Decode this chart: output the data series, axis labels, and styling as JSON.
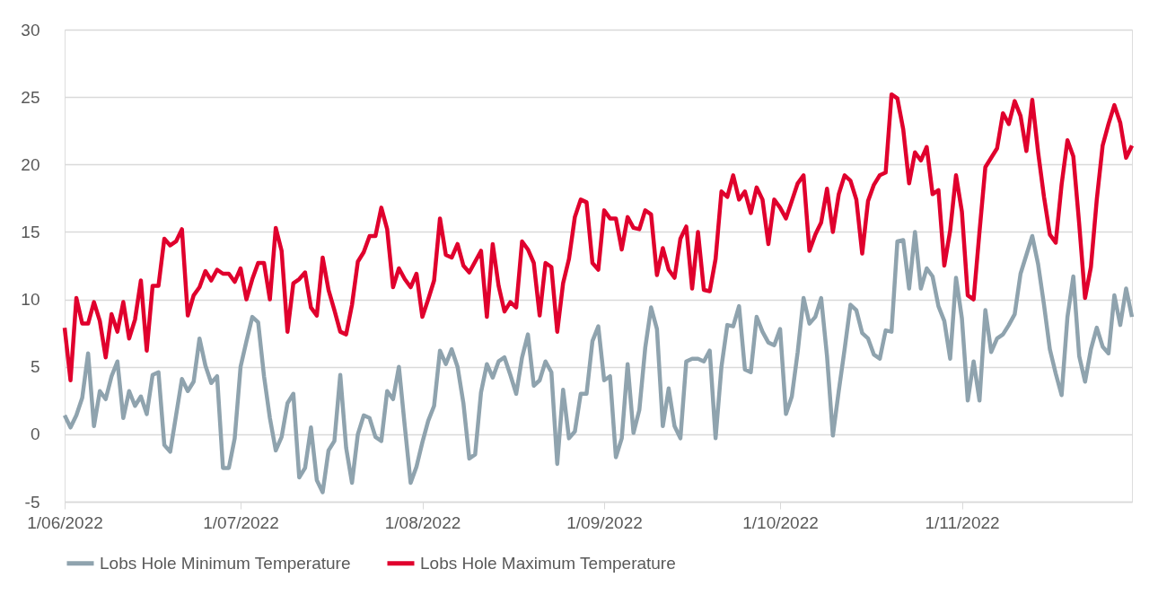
{
  "chart_data": {
    "type": "line",
    "x": [
      "2022-06-01",
      "2022-06-02",
      "2022-06-03",
      "2022-06-04",
      "2022-06-05",
      "2022-06-06",
      "2022-06-07",
      "2022-06-08",
      "2022-06-09",
      "2022-06-10",
      "2022-06-11",
      "2022-06-12",
      "2022-06-13",
      "2022-06-14",
      "2022-06-15",
      "2022-06-16",
      "2022-06-17",
      "2022-06-18",
      "2022-06-19",
      "2022-06-20",
      "2022-06-21",
      "2022-06-22",
      "2022-06-23",
      "2022-06-24",
      "2022-06-25",
      "2022-06-26",
      "2022-06-27",
      "2022-06-28",
      "2022-06-29",
      "2022-06-30",
      "2022-07-01",
      "2022-07-02",
      "2022-07-03",
      "2022-07-04",
      "2022-07-05",
      "2022-07-06",
      "2022-07-07",
      "2022-07-08",
      "2022-07-09",
      "2022-07-10",
      "2022-07-11",
      "2022-07-12",
      "2022-07-13",
      "2022-07-14",
      "2022-07-15",
      "2022-07-16",
      "2022-07-17",
      "2022-07-18",
      "2022-07-19",
      "2022-07-20",
      "2022-07-21",
      "2022-07-22",
      "2022-07-23",
      "2022-07-24",
      "2022-07-25",
      "2022-07-26",
      "2022-07-27",
      "2022-07-28",
      "2022-07-29",
      "2022-07-30",
      "2022-07-31",
      "2022-08-01",
      "2022-08-02",
      "2022-08-03",
      "2022-08-04",
      "2022-08-05",
      "2022-08-06",
      "2022-08-07",
      "2022-08-08",
      "2022-08-09",
      "2022-08-10",
      "2022-08-11",
      "2022-08-12",
      "2022-08-13",
      "2022-08-14",
      "2022-08-15",
      "2022-08-16",
      "2022-08-17",
      "2022-08-18",
      "2022-08-19",
      "2022-08-20",
      "2022-08-21",
      "2022-08-22",
      "2022-08-23",
      "2022-08-24",
      "2022-08-25",
      "2022-08-26",
      "2022-08-27",
      "2022-08-28",
      "2022-08-29",
      "2022-08-30",
      "2022-08-31",
      "2022-09-01",
      "2022-09-02",
      "2022-09-03",
      "2022-09-04",
      "2022-09-05",
      "2022-09-06",
      "2022-09-07",
      "2022-09-08",
      "2022-09-09",
      "2022-09-10",
      "2022-09-11",
      "2022-09-12",
      "2022-09-13",
      "2022-09-14",
      "2022-09-15",
      "2022-09-16",
      "2022-09-17",
      "2022-09-18",
      "2022-09-19",
      "2022-09-20",
      "2022-09-21",
      "2022-09-22",
      "2022-09-23",
      "2022-09-24",
      "2022-09-25",
      "2022-09-26",
      "2022-09-27",
      "2022-09-28",
      "2022-09-29",
      "2022-09-30",
      "2022-10-01",
      "2022-10-02",
      "2022-10-03",
      "2022-10-04",
      "2022-10-05",
      "2022-10-06",
      "2022-10-07",
      "2022-10-08",
      "2022-10-09",
      "2022-10-10",
      "2022-10-11",
      "2022-10-12",
      "2022-10-13",
      "2022-10-14",
      "2022-10-15",
      "2022-10-16",
      "2022-10-17",
      "2022-10-18",
      "2022-10-19",
      "2022-10-20",
      "2022-10-21",
      "2022-10-22",
      "2022-10-23",
      "2022-10-24",
      "2022-10-25",
      "2022-10-26",
      "2022-10-27",
      "2022-10-28",
      "2022-10-29",
      "2022-10-30",
      "2022-10-31",
      "2022-11-01",
      "2022-11-02",
      "2022-11-03",
      "2022-11-04",
      "2022-11-05",
      "2022-11-06",
      "2022-11-07",
      "2022-11-08",
      "2022-11-09",
      "2022-11-10",
      "2022-11-11",
      "2022-11-12",
      "2022-11-13",
      "2022-11-14",
      "2022-11-15",
      "2022-11-16",
      "2022-11-17",
      "2022-11-18",
      "2022-11-19",
      "2022-11-20",
      "2022-11-21",
      "2022-11-22",
      "2022-11-23",
      "2022-11-24",
      "2022-11-25",
      "2022-11-26",
      "2022-11-27",
      "2022-11-28",
      "2022-11-29",
      "2022-11-30"
    ],
    "series": [
      {
        "name": "Lobs Hole Minimum Temperature",
        "color": "#8fa3ae",
        "values": [
          1.4,
          0.5,
          1.4,
          2.7,
          6.0,
          0.6,
          3.2,
          2.6,
          4.3,
          5.4,
          1.2,
          3.2,
          2.1,
          2.8,
          1.5,
          4.4,
          4.6,
          -0.8,
          -1.3,
          1.4,
          4.1,
          3.2,
          3.9,
          7.1,
          5.1,
          3.8,
          4.3,
          -2.5,
          -2.5,
          -0.3,
          5.0,
          6.9,
          8.7,
          8.3,
          4.3,
          1.2,
          -1.2,
          -0.2,
          2.3,
          3.0,
          -3.2,
          -2.5,
          0.5,
          -3.4,
          -4.3,
          -1.2,
          -0.5,
          4.4,
          -1.0,
          -3.6,
          0.0,
          1.4,
          1.2,
          -0.2,
          -0.5,
          3.2,
          2.6,
          5.0,
          0.6,
          -3.6,
          -2.4,
          -0.6,
          1.0,
          2.1,
          6.2,
          5.2,
          6.3,
          5.0,
          2.3,
          -1.8,
          -1.5,
          3.1,
          5.2,
          4.2,
          5.4,
          5.7,
          4.4,
          3.0,
          5.7,
          7.4,
          3.6,
          4.0,
          5.4,
          4.6,
          -2.2,
          3.3,
          -0.3,
          0.2,
          3.0,
          3.0,
          6.9,
          8.0,
          4.0,
          4.3,
          -1.7,
          -0.3,
          5.2,
          0.1,
          1.8,
          6.4,
          9.4,
          7.8,
          0.6,
          3.4,
          0.6,
          -0.3,
          5.4,
          5.6,
          5.6,
          5.4,
          6.2,
          -0.3,
          5.0,
          8.1,
          8.0,
          9.5,
          4.8,
          4.6,
          8.7,
          7.6,
          6.8,
          6.6,
          7.8,
          1.5,
          2.8,
          6.1,
          10.1,
          8.2,
          8.7,
          10.1,
          5.8,
          -0.1,
          3.2,
          6.3,
          9.6,
          9.2,
          7.5,
          7.1,
          5.9,
          5.6,
          7.7,
          7.6,
          14.3,
          14.4,
          10.8,
          15.0,
          10.8,
          12.3,
          11.7,
          9.5,
          8.4,
          5.6,
          11.6,
          8.6,
          2.5,
          5.4,
          2.5,
          9.2,
          6.1,
          7.1,
          7.4,
          8.1,
          8.9,
          11.9,
          13.3,
          14.7,
          12.6,
          9.6,
          6.3,
          4.5,
          2.9,
          8.7,
          11.7,
          5.8,
          3.9,
          6.3,
          7.9,
          6.5,
          6.0,
          10.3,
          8.1,
          10.8,
          8.7
        ]
      },
      {
        "name": "Lobs Hole Maximum Temperature",
        "color": "#e0002d",
        "values": [
          7.9,
          4.0,
          10.1,
          8.2,
          8.2,
          9.8,
          8.4,
          5.7,
          8.9,
          7.6,
          9.8,
          7.1,
          8.5,
          11.4,
          6.2,
          11.0,
          11.0,
          14.5,
          14.0,
          14.3,
          15.2,
          8.8,
          10.3,
          10.9,
          12.1,
          11.4,
          12.2,
          11.9,
          11.9,
          11.3,
          12.3,
          10.0,
          11.5,
          12.7,
          12.7,
          10.0,
          15.3,
          13.6,
          7.6,
          11.2,
          11.5,
          12.0,
          9.4,
          8.8,
          13.1,
          10.7,
          9.2,
          7.6,
          7.4,
          9.6,
          12.8,
          13.5,
          14.7,
          14.7,
          16.8,
          15.2,
          10.9,
          12.3,
          11.5,
          10.9,
          11.9,
          8.7,
          10.0,
          11.4,
          16.0,
          13.3,
          13.1,
          14.1,
          12.5,
          12.0,
          12.8,
          13.6,
          8.7,
          14.1,
          11.0,
          9.1,
          9.8,
          9.4,
          14.3,
          13.7,
          12.7,
          8.8,
          12.7,
          12.4,
          7.6,
          11.2,
          13.0,
          16.1,
          17.4,
          17.2,
          12.7,
          12.2,
          16.6,
          16.0,
          16.0,
          13.7,
          16.1,
          15.3,
          15.2,
          16.6,
          16.3,
          11.8,
          13.8,
          12.2,
          11.6,
          14.5,
          15.4,
          10.8,
          15.0,
          10.7,
          10.6,
          13.0,
          18.0,
          17.6,
          19.2,
          17.4,
          18.0,
          16.4,
          18.3,
          17.4,
          14.1,
          17.4,
          16.8,
          16.0,
          17.3,
          18.6,
          19.2,
          13.6,
          14.8,
          15.7,
          18.2,
          15.0,
          17.8,
          19.2,
          18.8,
          17.4,
          13.4,
          17.3,
          18.5,
          19.2,
          19.4,
          25.2,
          24.9,
          22.6,
          18.6,
          20.9,
          20.3,
          21.3,
          17.8,
          18.1,
          12.5,
          15.1,
          19.2,
          16.5,
          10.3,
          10.0,
          15.0,
          19.8,
          20.5,
          21.2,
          23.8,
          23.0,
          24.7,
          23.6,
          21.0,
          24.8,
          20.9,
          17.6,
          14.8,
          14.2,
          18.5,
          21.8,
          20.6,
          15.6,
          10.1,
          12.4,
          17.4,
          21.4,
          23.0,
          24.4,
          23.1,
          20.5,
          21.4
        ]
      }
    ],
    "xlim": [
      "2022-06-01",
      "2022-11-30"
    ],
    "xticks": [
      {
        "value": "2022-06-01",
        "label": "1/06/2022"
      },
      {
        "value": "2022-07-01",
        "label": "1/07/2022"
      },
      {
        "value": "2022-08-01",
        "label": "1/08/2022"
      },
      {
        "value": "2022-09-01",
        "label": "1/09/2022"
      },
      {
        "value": "2022-10-01",
        "label": "1/10/2022"
      },
      {
        "value": "2022-11-01",
        "label": "1/11/2022"
      }
    ],
    "ylim": [
      -5,
      30
    ],
    "yticks": [
      -5,
      0,
      5,
      10,
      15,
      20,
      25,
      30
    ],
    "grid": "y",
    "legend": "bottom",
    "marker": "none",
    "line_style": "solid"
  }
}
